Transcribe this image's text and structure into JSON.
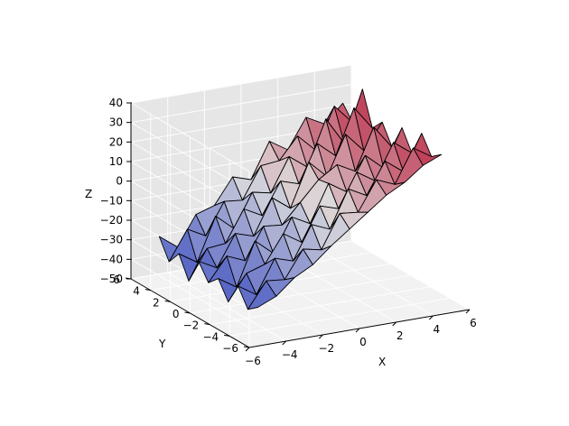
{
  "chart_data": {
    "type": "surface3d",
    "title": "",
    "colormap": "coolwarm",
    "colors": {
      "low": "#3b4cc0",
      "mid": "#dddddd",
      "high": "#b40426",
      "pane": "#eeeeee"
    },
    "xlabel": "X",
    "ylabel": "Y",
    "zlabel": "Z",
    "xlim": [
      -6,
      6
    ],
    "ylim": [
      -6,
      6
    ],
    "zlim": [
      -50,
      40
    ],
    "xticks": [
      -6,
      -4,
      -2,
      0,
      2,
      4,
      6
    ],
    "yticks": [
      -6,
      -4,
      -2,
      0,
      2,
      4,
      6
    ],
    "zticks": [
      -50,
      -40,
      -30,
      -20,
      -10,
      0,
      10,
      20,
      30,
      40
    ],
    "xtick_labels": [
      "−6",
      "−4",
      "−2",
      "0",
      "2",
      "4",
      "6"
    ],
    "ytick_labels": [
      "−6",
      "−4",
      "−2",
      "0",
      "2",
      "4",
      "6"
    ],
    "ztick_labels": [
      "−50",
      "−40",
      "−30",
      "−20",
      "−10",
      "0",
      "10",
      "20",
      "30",
      "40"
    ],
    "grid": true,
    "surface": {
      "x": [
        -5,
        -4,
        -3,
        -2,
        -1,
        0,
        1,
        2,
        3,
        4,
        5
      ],
      "y": [
        -5,
        -4,
        -3,
        -2,
        -1,
        0,
        1,
        2,
        3,
        4,
        5
      ],
      "z": [
        [
          -34,
          -30,
          -22,
          -17,
          -9,
          -2,
          5,
          12,
          17,
          24,
          28
        ],
        [
          -38,
          -25,
          -26,
          -12,
          -14,
          3,
          2,
          17,
          13,
          30,
          24
        ],
        [
          -29,
          -35,
          -18,
          -21,
          -4,
          -8,
          11,
          6,
          22,
          15,
          33
        ],
        [
          -40,
          -27,
          -24,
          -10,
          -16,
          1,
          -2,
          15,
          9,
          27,
          20
        ],
        [
          -31,
          -37,
          -15,
          -23,
          -6,
          -11,
          8,
          2,
          19,
          11,
          30
        ],
        [
          -36,
          -24,
          -28,
          -12,
          -13,
          -3,
          7,
          13,
          8,
          29,
          17
        ],
        [
          -28,
          -33,
          -17,
          -20,
          -2,
          -9,
          13,
          4,
          24,
          14,
          27
        ],
        [
          -41,
          -26,
          -25,
          -9,
          -14,
          2,
          -1,
          18,
          10,
          33,
          21
        ],
        [
          -30,
          -36,
          -14,
          -22,
          -5,
          -7,
          10,
          3,
          26,
          12,
          38
        ],
        [
          -37,
          -22,
          -27,
          -11,
          -12,
          4,
          5,
          16,
          7,
          28,
          18
        ],
        [
          -27,
          -34,
          -19,
          -16,
          -3,
          -6,
          12,
          6,
          21,
          16,
          25
        ]
      ]
    }
  }
}
